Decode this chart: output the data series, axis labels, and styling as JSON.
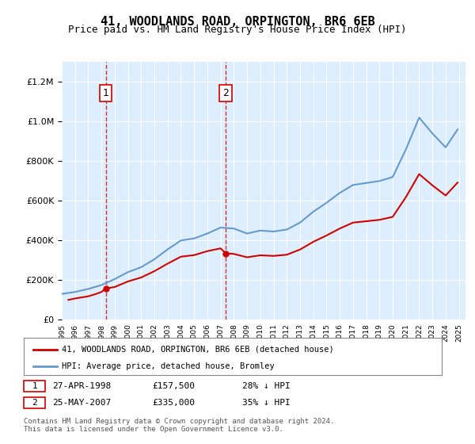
{
  "title": "41, WOODLANDS ROAD, ORPINGTON, BR6 6EB",
  "subtitle": "Price paid vs. HM Land Registry's House Price Index (HPI)",
  "sale1_date": 1998.32,
  "sale1_price": 157500,
  "sale1_label": "1",
  "sale2_date": 2007.39,
  "sale2_price": 335000,
  "sale2_label": "2",
  "hpi_color": "#6699cc",
  "sale_color": "#cc0000",
  "background_color": "#ddeeff",
  "legend_label1": "41, WOODLANDS ROAD, ORPINGTON, BR6 6EB (detached house)",
  "legend_label2": "HPI: Average price, detached house, Bromley",
  "table_row1": "27-APR-1998    £157,500    28% ↓ HPI",
  "table_row2": "25-MAY-2007    £335,000    35% ↓ HPI",
  "footer": "Contains HM Land Registry data © Crown copyright and database right 2024.\nThis data is licensed under the Open Government Licence v3.0.",
  "xlim": [
    1995,
    2025.5
  ],
  "ylim": [
    0,
    1300000
  ],
  "yticks": [
    0,
    200000,
    400000,
    600000,
    800000,
    1000000,
    1200000
  ]
}
